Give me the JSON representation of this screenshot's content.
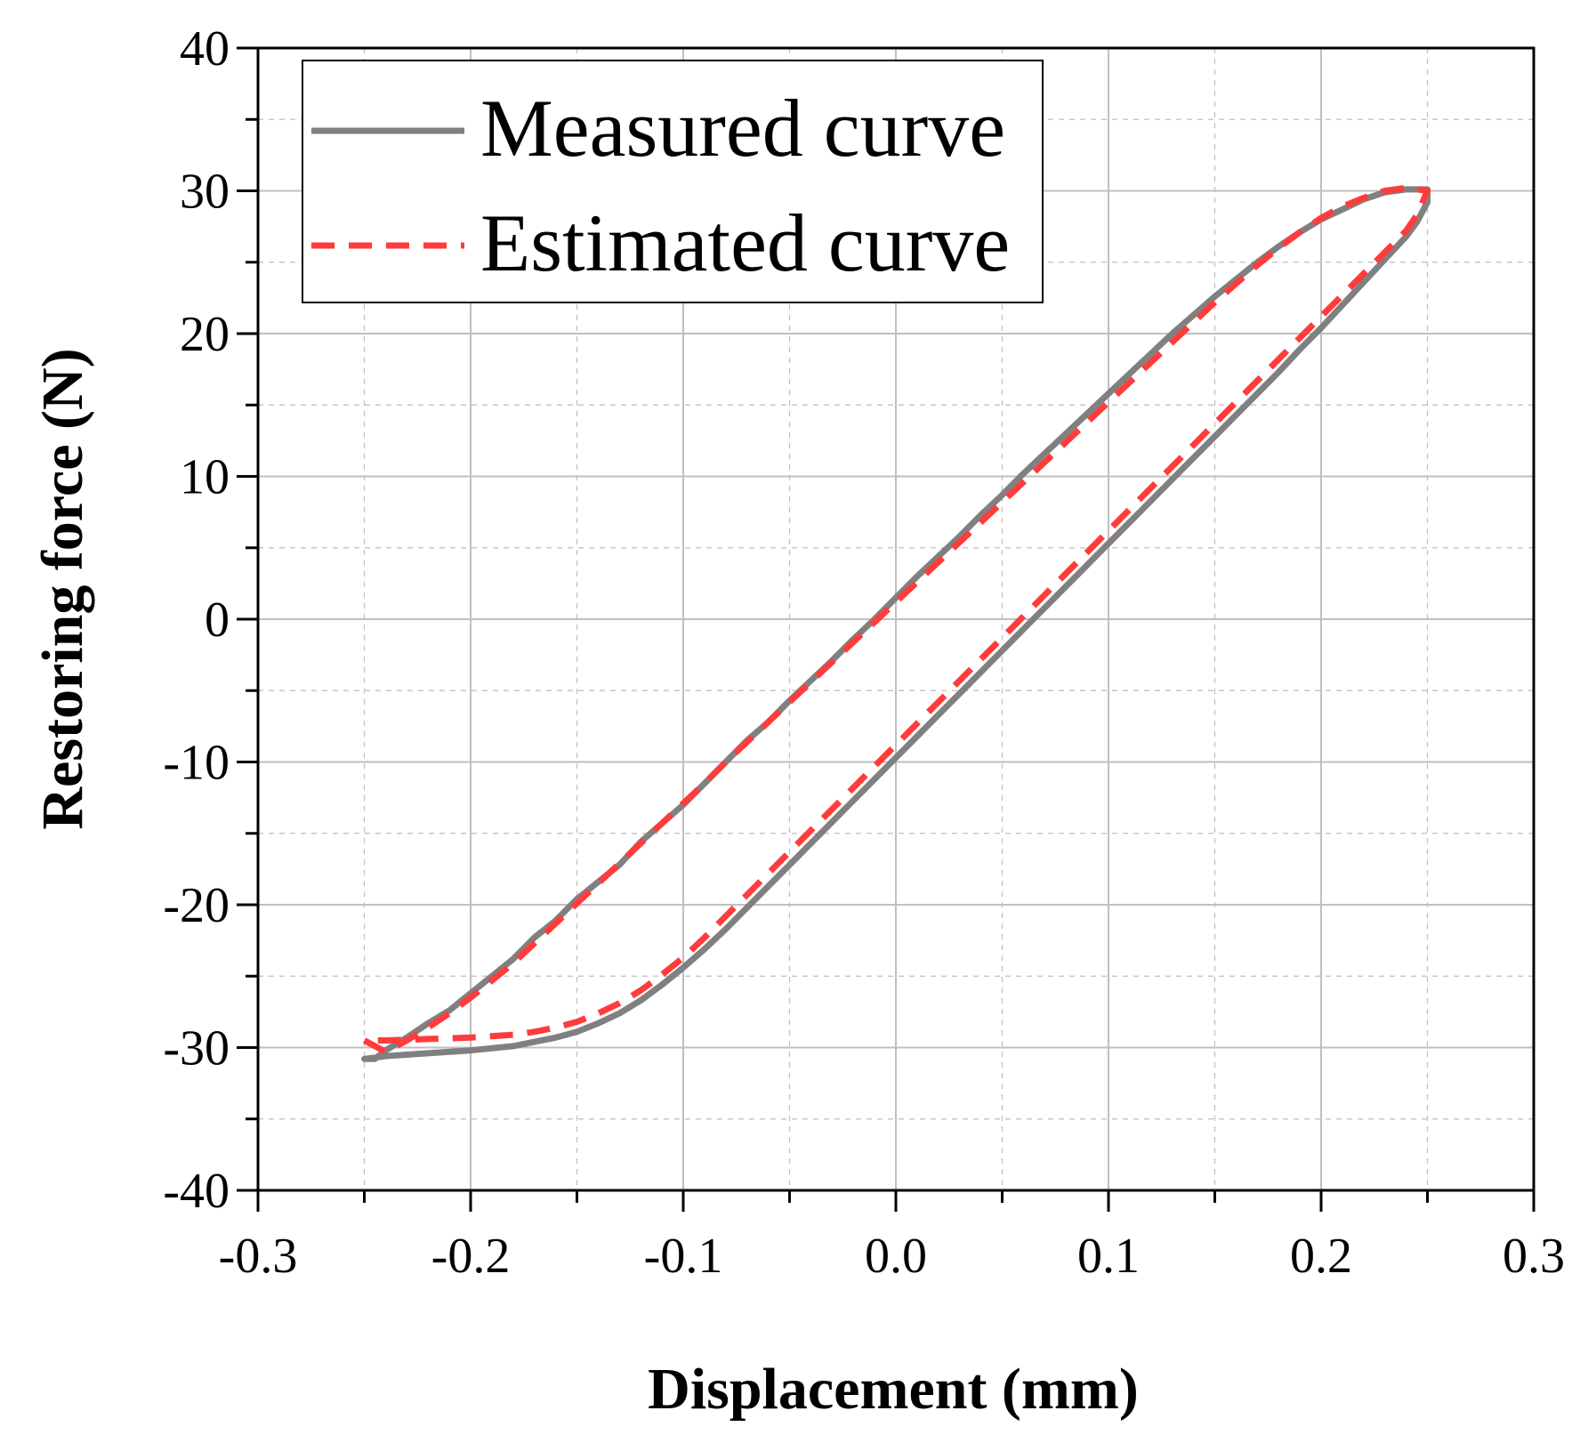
{
  "chart_data": {
    "type": "line",
    "title": "",
    "xlabel": "Displacement (mm)",
    "ylabel": "Restoring force (N)",
    "xlim": [
      -0.3,
      0.3
    ],
    "ylim": [
      -40,
      40
    ],
    "xticks": [
      -0.3,
      -0.2,
      -0.1,
      0.0,
      0.1,
      0.2,
      0.3
    ],
    "xtick_labels": [
      "-0.3",
      "-0.2",
      "-0.1",
      "0.0",
      "0.1",
      "0.2",
      "0.3"
    ],
    "yticks": [
      -40,
      -30,
      -20,
      -10,
      0,
      10,
      20,
      30,
      40
    ],
    "ytick_labels": [
      "-40",
      "-30",
      "-20",
      "-10",
      "0",
      "10",
      "20",
      "30",
      "40"
    ],
    "grid": true,
    "legend_position": "top-left",
    "colors": {
      "measured": "#808080",
      "estimated": "#ff3c3c",
      "grid": "#bfbfbf",
      "axis": "#000000"
    },
    "series": [
      {
        "name": "Measured curve",
        "style": "solid",
        "color": "#808080",
        "points": [
          [
            -0.25,
            -30.8
          ],
          [
            -0.245,
            -30.8
          ],
          [
            -0.24,
            -30.2
          ],
          [
            -0.23,
            -29.3
          ],
          [
            -0.22,
            -28.3
          ],
          [
            -0.21,
            -27.4
          ],
          [
            -0.2,
            -26.2
          ],
          [
            -0.19,
            -25.0
          ],
          [
            -0.18,
            -23.8
          ],
          [
            -0.17,
            -22.3
          ],
          [
            -0.16,
            -21.1
          ],
          [
            -0.15,
            -19.6
          ],
          [
            -0.14,
            -18.4
          ],
          [
            -0.13,
            -17.2
          ],
          [
            -0.12,
            -15.6
          ],
          [
            -0.11,
            -14.3
          ],
          [
            -0.1,
            -13.0
          ],
          [
            -0.09,
            -11.5
          ],
          [
            -0.08,
            -10.0
          ],
          [
            -0.07,
            -8.5
          ],
          [
            -0.06,
            -7.2
          ],
          [
            -0.05,
            -5.7
          ],
          [
            -0.04,
            -4.3
          ],
          [
            -0.03,
            -2.9
          ],
          [
            -0.02,
            -1.4
          ],
          [
            -0.01,
            0.0
          ],
          [
            0.0,
            1.5
          ],
          [
            0.01,
            3.0
          ],
          [
            0.02,
            4.4
          ],
          [
            0.03,
            5.8
          ],
          [
            0.04,
            7.3
          ],
          [
            0.05,
            8.7
          ],
          [
            0.06,
            10.2
          ],
          [
            0.07,
            11.6
          ],
          [
            0.08,
            13.0
          ],
          [
            0.09,
            14.4
          ],
          [
            0.1,
            15.8
          ],
          [
            0.11,
            17.2
          ],
          [
            0.12,
            18.6
          ],
          [
            0.13,
            20.0
          ],
          [
            0.14,
            21.3
          ],
          [
            0.15,
            22.6
          ],
          [
            0.16,
            23.8
          ],
          [
            0.17,
            25.0
          ],
          [
            0.18,
            26.1
          ],
          [
            0.19,
            27.1
          ],
          [
            0.2,
            28.0
          ],
          [
            0.21,
            28.7
          ],
          [
            0.22,
            29.4
          ],
          [
            0.23,
            29.9
          ],
          [
            0.24,
            30.1
          ],
          [
            0.25,
            30.1
          ],
          [
            0.25,
            29.2
          ],
          [
            0.245,
            27.8
          ],
          [
            0.24,
            26.8
          ],
          [
            0.23,
            25.2
          ],
          [
            0.22,
            23.6
          ],
          [
            0.21,
            22.0
          ],
          [
            0.2,
            20.4
          ],
          [
            0.19,
            18.9
          ],
          [
            0.18,
            17.3
          ],
          [
            0.17,
            15.8
          ],
          [
            0.16,
            14.3
          ],
          [
            0.15,
            12.8
          ],
          [
            0.14,
            11.3
          ],
          [
            0.13,
            9.8
          ],
          [
            0.12,
            8.3
          ],
          [
            0.11,
            6.8
          ],
          [
            0.1,
            5.3
          ],
          [
            0.09,
            3.8
          ],
          [
            0.08,
            2.3
          ],
          [
            0.07,
            0.8
          ],
          [
            0.06,
            -0.7
          ],
          [
            0.05,
            -2.2
          ],
          [
            0.04,
            -3.7
          ],
          [
            0.03,
            -5.2
          ],
          [
            0.02,
            -6.7
          ],
          [
            0.01,
            -8.2
          ],
          [
            0.0,
            -9.7
          ],
          [
            -0.01,
            -11.2
          ],
          [
            -0.02,
            -12.7
          ],
          [
            -0.03,
            -14.2
          ],
          [
            -0.04,
            -15.7
          ],
          [
            -0.05,
            -17.2
          ],
          [
            -0.06,
            -18.7
          ],
          [
            -0.07,
            -20.2
          ],
          [
            -0.08,
            -21.7
          ],
          [
            -0.09,
            -23.1
          ],
          [
            -0.1,
            -24.4
          ],
          [
            -0.11,
            -25.6
          ],
          [
            -0.12,
            -26.7
          ],
          [
            -0.13,
            -27.6
          ],
          [
            -0.14,
            -28.3
          ],
          [
            -0.15,
            -28.9
          ],
          [
            -0.16,
            -29.3
          ],
          [
            -0.17,
            -29.6
          ],
          [
            -0.18,
            -29.9
          ],
          [
            -0.2,
            -30.2
          ],
          [
            -0.22,
            -30.4
          ],
          [
            -0.24,
            -30.6
          ],
          [
            -0.25,
            -30.8
          ]
        ]
      },
      {
        "name": "Estimated curve",
        "style": "dashed",
        "color": "#ff3c3c",
        "points": [
          [
            -0.25,
            -29.5
          ],
          [
            -0.24,
            -30.3
          ],
          [
            -0.23,
            -29.5
          ],
          [
            -0.22,
            -28.6
          ],
          [
            -0.21,
            -27.6
          ],
          [
            -0.2,
            -26.5
          ],
          [
            -0.19,
            -25.3
          ],
          [
            -0.18,
            -24.1
          ],
          [
            -0.17,
            -22.7
          ],
          [
            -0.16,
            -21.3
          ],
          [
            -0.15,
            -19.9
          ],
          [
            -0.14,
            -18.5
          ],
          [
            -0.13,
            -17.1
          ],
          [
            -0.12,
            -15.7
          ],
          [
            -0.11,
            -14.3
          ],
          [
            -0.1,
            -12.9
          ],
          [
            -0.09,
            -11.5
          ],
          [
            -0.08,
            -10.0
          ],
          [
            -0.07,
            -8.6
          ],
          [
            -0.06,
            -7.2
          ],
          [
            -0.05,
            -5.8
          ],
          [
            -0.04,
            -4.4
          ],
          [
            -0.03,
            -3.0
          ],
          [
            -0.02,
            -1.6
          ],
          [
            -0.01,
            -0.2
          ],
          [
            0.0,
            1.2
          ],
          [
            0.01,
            2.6
          ],
          [
            0.02,
            4.0
          ],
          [
            0.03,
            5.4
          ],
          [
            0.04,
            6.8
          ],
          [
            0.05,
            8.2
          ],
          [
            0.06,
            9.6
          ],
          [
            0.07,
            11.0
          ],
          [
            0.08,
            12.4
          ],
          [
            0.09,
            13.8
          ],
          [
            0.1,
            15.2
          ],
          [
            0.11,
            16.6
          ],
          [
            0.12,
            18.0
          ],
          [
            0.13,
            19.4
          ],
          [
            0.14,
            20.8
          ],
          [
            0.15,
            22.2
          ],
          [
            0.16,
            23.5
          ],
          [
            0.17,
            24.8
          ],
          [
            0.18,
            26.0
          ],
          [
            0.19,
            27.1
          ],
          [
            0.2,
            28.1
          ],
          [
            0.21,
            28.9
          ],
          [
            0.22,
            29.5
          ],
          [
            0.23,
            30.0
          ],
          [
            0.24,
            30.2
          ],
          [
            0.25,
            30.0
          ],
          [
            0.245,
            28.3
          ],
          [
            0.24,
            27.2
          ],
          [
            0.23,
            25.7
          ],
          [
            0.22,
            24.2
          ],
          [
            0.21,
            22.7
          ],
          [
            0.2,
            21.2
          ],
          [
            0.19,
            19.7
          ],
          [
            0.18,
            18.2
          ],
          [
            0.17,
            16.7
          ],
          [
            0.16,
            15.2
          ],
          [
            0.15,
            13.7
          ],
          [
            0.14,
            12.2
          ],
          [
            0.13,
            10.7
          ],
          [
            0.12,
            9.2
          ],
          [
            0.11,
            7.7
          ],
          [
            0.1,
            6.2
          ],
          [
            0.09,
            4.7
          ],
          [
            0.08,
            3.2
          ],
          [
            0.07,
            1.7
          ],
          [
            0.06,
            0.2
          ],
          [
            0.05,
            -1.3
          ],
          [
            0.04,
            -2.8
          ],
          [
            0.03,
            -4.3
          ],
          [
            0.02,
            -5.8
          ],
          [
            0.01,
            -7.3
          ],
          [
            0.0,
            -8.8
          ],
          [
            -0.01,
            -10.3
          ],
          [
            -0.02,
            -11.8
          ],
          [
            -0.03,
            -13.3
          ],
          [
            -0.04,
            -14.8
          ],
          [
            -0.05,
            -16.3
          ],
          [
            -0.06,
            -17.8
          ],
          [
            -0.07,
            -19.3
          ],
          [
            -0.08,
            -20.8
          ],
          [
            -0.09,
            -22.3
          ],
          [
            -0.1,
            -23.7
          ],
          [
            -0.11,
            -24.9
          ],
          [
            -0.12,
            -26.0
          ],
          [
            -0.13,
            -26.9
          ],
          [
            -0.14,
            -27.6
          ],
          [
            -0.15,
            -28.2
          ],
          [
            -0.16,
            -28.6
          ],
          [
            -0.17,
            -28.9
          ],
          [
            -0.18,
            -29.1
          ],
          [
            -0.2,
            -29.3
          ],
          [
            -0.22,
            -29.4
          ],
          [
            -0.24,
            -29.5
          ],
          [
            -0.25,
            -29.5
          ]
        ]
      }
    ]
  }
}
